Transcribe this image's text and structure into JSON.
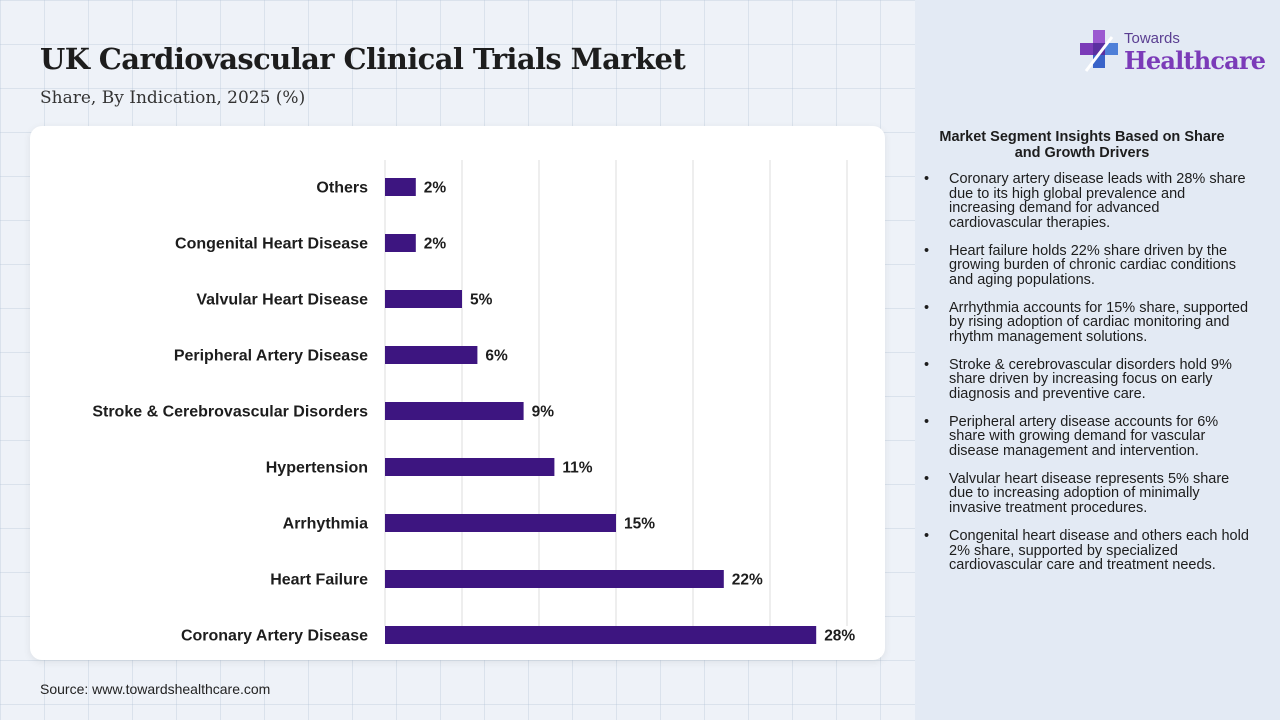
{
  "header": {
    "title": "UK Cardiovascular Clinical Trials Market",
    "subtitle": "Share, By Indication, 2025 (%)"
  },
  "logo": {
    "small": "Towards",
    "big": "Healthcare",
    "icon": "medical-cross-icon"
  },
  "source": "Source: www.towardshealthcare.com",
  "insights": {
    "title": "Market Segment Insights Based on Share and Growth Drivers",
    "items": [
      "Coronary artery disease leads with 28% share due to its high global prevalence and increasing demand for advanced cardiovascular therapies.",
      "Heart failure holds 22% share driven by the growing burden of chronic cardiac conditions and aging populations.",
      "Arrhythmia accounts for 15% share, supported by rising adoption of cardiac monitoring and rhythm management solutions.",
      "Stroke & cerebrovascular disorders hold 9% share driven by increasing focus on early diagnosis and preventive care.",
      "Peripheral artery disease accounts for 6% share with growing demand for vascular disease management and intervention.",
      "Valvular heart disease represents 5% share due to increasing adoption of minimally invasive treatment procedures.",
      "Congenital heart disease and others each hold 2% share, supported by specialized cardiovascular care and treatment needs."
    ]
  },
  "colors": {
    "bar": "#3d1580",
    "accent": "#7b3bb8"
  },
  "chart_data": {
    "type": "bar",
    "orientation": "horizontal",
    "title": "UK Cardiovascular Clinical Trials Market",
    "subtitle": "Share, By Indication, 2025 (%)",
    "categories": [
      "Others",
      "Congenital Heart Disease",
      "Valvular Heart Disease",
      "Peripheral Artery Disease",
      "Stroke & Cerebrovascular Disorders",
      "Hypertension",
      "Arrhythmia",
      "Heart Failure",
      "Coronary Artery Disease"
    ],
    "values": [
      2,
      2,
      5,
      6,
      9,
      11,
      15,
      22,
      28
    ],
    "data_labels": [
      "2%",
      "2%",
      "5%",
      "6%",
      "9%",
      "11%",
      "15%",
      "22%",
      "28%"
    ],
    "xlim": [
      0,
      30
    ],
    "grid": true
  }
}
